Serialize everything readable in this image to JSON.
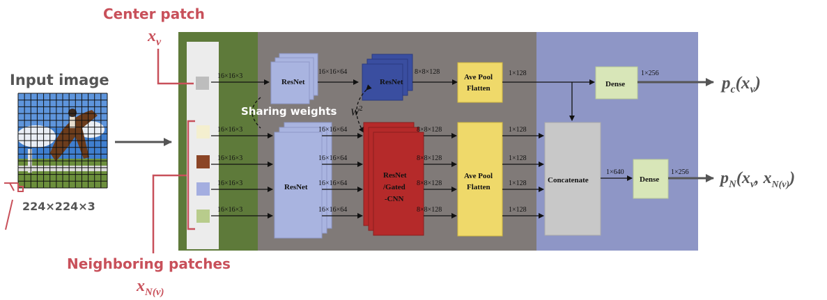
{
  "labels": {
    "center_patch": "Center patch",
    "center_var": "x",
    "center_var_sub": "v",
    "input_image": "Input image",
    "input_dims": "224×224×3",
    "neighboring_patches": "Neighboring patches",
    "neighbor_var": "x",
    "neighbor_var_sub": "N(v)",
    "sharing_weights": "Sharing weights",
    "w_symbol": "W",
    "w_sup": "2"
  },
  "blocks": {
    "resnet_top": "ResNet",
    "resnet_top2": "ResNet",
    "avepool_top_1": "Ave Pool",
    "avepool_top_2": "Flatten",
    "dense_top": "Dense",
    "resnet_bottom": "ResNet",
    "gated_1": "ResNet",
    "gated_2": "/Gated",
    "gated_3": "-CNN",
    "avepool_bot_1": "Ave Pool",
    "avepool_bot_2": "Flatten",
    "concatenate": "Concatenate",
    "dense_bottom": "Dense"
  },
  "dims": {
    "patch": "16×16×3",
    "resnet_out": "16×16×64",
    "cnn_out": "8×8×128",
    "flat": "1×128",
    "dense_top_out": "1×256",
    "concat_out": "1×640",
    "dense_bot_out": "1×256"
  },
  "outputs": {
    "top_p": "p",
    "top_sub": "c",
    "top_arg": "(x",
    "top_arg_sub": "v",
    "top_close": ")",
    "bot_p": "p",
    "bot_sub": "N",
    "bot_arg": "(x",
    "bot_arg_sub": "v",
    "bot_mid": ", x",
    "bot_arg2_sub": "N(v)",
    "bot_close": ")"
  },
  "colors": {
    "label_red": "#c8505a",
    "green_panel": "#5e7a3a",
    "gray_panel": "#807a78",
    "blue_panel": "#8e96c6",
    "resnet_light": "#a9b4e0",
    "resnet_dark": "#3a4ea0",
    "gated_red": "#b52a2a",
    "pool_yellow": "#efd96a",
    "dense_green": "#d8e6b8",
    "concat_gray": "#c8c8c8",
    "patch_gray": "#bdbdbd",
    "patch_cream": "#f4efcf",
    "patch_brown": "#8b4526",
    "patch_lavender": "#a4aee0",
    "patch_green": "#b8cc8c"
  }
}
